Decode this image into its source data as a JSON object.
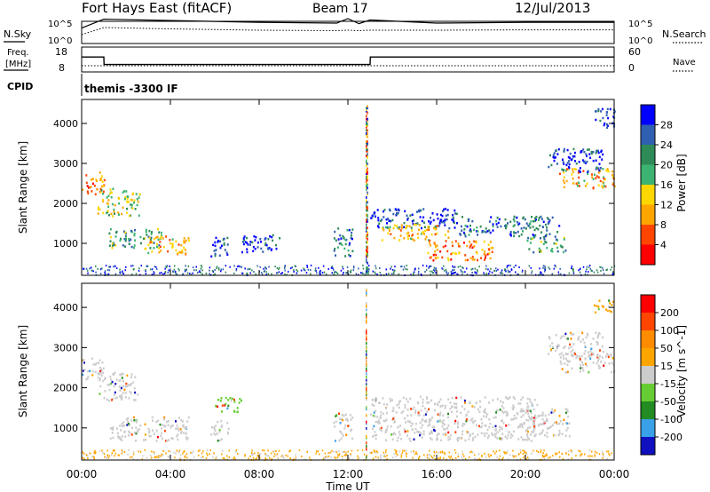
{
  "header": {
    "station": "Fort Hays East (fitACF)",
    "beam": "Beam 17",
    "date": "12/Jul/2013"
  },
  "top_panels": {
    "nsky_label": "N.Sky",
    "nsearch_label": "N.Search",
    "nsky_ticks": [
      "10^5",
      "10^0"
    ],
    "nsearch_ticks": [
      "10^5",
      "10^0"
    ],
    "freq_label": "Freq.",
    "freq_unit": "[MHz]",
    "freq_ticks": [
      "18",
      "8"
    ],
    "nave_label": "Nave",
    "nave_ticks": [
      "60",
      "0"
    ],
    "cpid_label": "CPID",
    "cpid_value": "themis -3300 IF"
  },
  "colors": {
    "power": [
      "#0000ff",
      "#2f5fb0",
      "#2e8b57",
      "#3cb371",
      "#ffd700",
      "#ffa500",
      "#ff4500",
      "#ff0000"
    ],
    "velocity": [
      "#1010c0",
      "#3aa0e8",
      "#228b22",
      "#66cc33",
      "#cccccc",
      "#ffa500",
      "#ff8c00",
      "#ff4500",
      "#ff0000"
    ],
    "ground_scatter": "#c8c8c8"
  },
  "chart_data": [
    {
      "type": "line",
      "title": "",
      "ylabel_left": "N.Sky",
      "ylabel_right": "N.Search",
      "x": [
        0,
        1,
        4,
        8,
        11.5,
        12,
        12.5,
        13,
        16,
        20,
        24
      ],
      "series": [
        {
          "name": "N.Sky",
          "values": [
            3000,
            300000,
            150000,
            60000,
            40000,
            400000,
            30000,
            200000,
            40000,
            60000,
            60000
          ]
        },
        {
          "name": "N.Search",
          "values": [
            100,
            4000,
            2000,
            1000,
            800,
            1000,
            800,
            1000,
            1000,
            1200,
            1200
          ]
        }
      ]
    },
    {
      "type": "line",
      "ylabel_left": "Freq. [MHz]",
      "ylabel_right": "Nave",
      "x": [
        0,
        1,
        1.01,
        13,
        13.01,
        24
      ],
      "series": [
        {
          "name": "Freq.",
          "values": [
            14,
            14,
            11,
            11,
            14,
            14
          ]
        },
        {
          "name": "Nave",
          "values": [
            15,
            15,
            15,
            15,
            15,
            15
          ]
        }
      ],
      "ylim_left": [
        8,
        18
      ],
      "ylim_right": [
        0,
        60
      ]
    },
    {
      "type": "heatmap",
      "ylabel": "Slant Range [km]",
      "colorbar_label": "Power [dB]",
      "colorbar_ticks": [
        "28",
        "24",
        "20",
        "16",
        "12",
        "8",
        "4"
      ],
      "y_ticks": [
        "4000",
        "3000",
        "2000",
        "1000"
      ],
      "ylim": [
        200,
        4600
      ],
      "xlim": [
        0,
        24
      ],
      "regions": [
        {
          "t": [
            0.0,
            1.0
          ],
          "r": [
            2200,
            2800
          ],
          "level": 6
        },
        {
          "t": [
            0.7,
            2.6
          ],
          "r": [
            1700,
            2400
          ],
          "level": 4
        },
        {
          "t": [
            1.2,
            3.6
          ],
          "r": [
            900,
            1400
          ],
          "level": 3
        },
        {
          "t": [
            2.8,
            4.8
          ],
          "r": [
            750,
            1200
          ],
          "level": 5
        },
        {
          "t": [
            5.8,
            6.6
          ],
          "r": [
            700,
            1250
          ],
          "level": 1
        },
        {
          "t": [
            7.2,
            9.0
          ],
          "r": [
            800,
            1250
          ],
          "level": 1
        },
        {
          "t": [
            11.3,
            12.2
          ],
          "r": [
            700,
            1400
          ],
          "level": 2
        },
        {
          "t": [
            13.0,
            17.0
          ],
          "r": [
            1400,
            1900
          ],
          "level": 1
        },
        {
          "t": [
            13.5,
            16.5
          ],
          "r": [
            1100,
            1500
          ],
          "level": 5
        },
        {
          "t": [
            15.5,
            18.5
          ],
          "r": [
            600,
            1100
          ],
          "level": 6
        },
        {
          "t": [
            17.0,
            21.5
          ],
          "r": [
            1200,
            1700
          ],
          "level": 2
        },
        {
          "t": [
            20.0,
            21.8
          ],
          "r": [
            800,
            1200
          ],
          "level": 3
        },
        {
          "t": [
            21.5,
            24.0
          ],
          "r": [
            2400,
            2900
          ],
          "level": 5
        },
        {
          "t": [
            21.0,
            23.5
          ],
          "r": [
            2800,
            3400
          ],
          "level": 1
        },
        {
          "t": [
            23.0,
            24.0
          ],
          "r": [
            3900,
            4400
          ],
          "level": 1
        }
      ],
      "spikes": [
        12.8,
        12.85
      ]
    },
    {
      "type": "heatmap",
      "ylabel": "Slant Range [km]",
      "xlabel": "Time UT",
      "colorbar_label": "Velocity [m s^-1]",
      "colorbar_ticks": [
        "200",
        "100",
        "50",
        "15",
        "-15",
        "-50",
        "-100",
        "-200"
      ],
      "y_ticks": [
        "4000",
        "3000",
        "2000",
        "1000"
      ],
      "x_ticks": [
        "00:00",
        "04:00",
        "08:00",
        "12:00",
        "16:00",
        "20:00",
        "00:00"
      ],
      "ylim": [
        200,
        4600
      ],
      "xlim": [
        0,
        24
      ],
      "regions": [
        {
          "t": [
            0.0,
            1.0
          ],
          "r": [
            2200,
            2800
          ],
          "level": 4
        },
        {
          "t": [
            0.7,
            2.6
          ],
          "r": [
            1700,
            2400
          ],
          "level": 4
        },
        {
          "t": [
            1.2,
            4.8
          ],
          "r": [
            700,
            1300
          ],
          "level": 4
        },
        {
          "t": [
            5.8,
            6.6
          ],
          "r": [
            700,
            1200
          ],
          "level": 4
        },
        {
          "t": [
            6.0,
            7.2
          ],
          "r": [
            1400,
            1800
          ],
          "level": 3
        },
        {
          "t": [
            11.3,
            12.2
          ],
          "r": [
            700,
            1400
          ],
          "level": 4
        },
        {
          "t": [
            13.0,
            20.5
          ],
          "r": [
            700,
            1800
          ],
          "level": 4
        },
        {
          "t": [
            20.0,
            22.0
          ],
          "r": [
            800,
            1500
          ],
          "level": 4
        },
        {
          "t": [
            21.5,
            24.0
          ],
          "r": [
            2400,
            2900
          ],
          "level": 4
        },
        {
          "t": [
            21.0,
            23.5
          ],
          "r": [
            2800,
            3400
          ],
          "level": 4
        },
        {
          "t": [
            23.0,
            24.0
          ],
          "r": [
            3900,
            4200
          ],
          "level": 5
        }
      ],
      "spikes": [
        12.8
      ]
    }
  ]
}
